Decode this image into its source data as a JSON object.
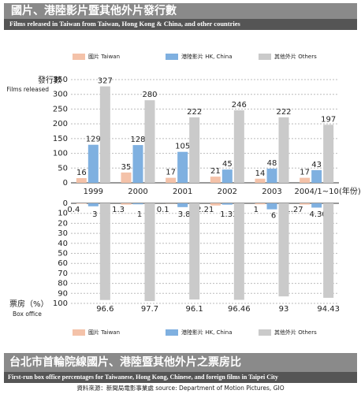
{
  "chart_data": [
    {
      "type": "bar",
      "title": "國片、港陸影片暨其他外片發行數",
      "subtitle": "Films released in Taiwan from Taiwan, Hong Kong & China, and other countries",
      "y_label": "發行數",
      "y_label_en": "Films released",
      "x_unit": "(年份)",
      "categories": [
        "1999",
        "2000",
        "2001",
        "2002",
        "2003",
        "2004/1~10"
      ],
      "series": [
        {
          "name": "國片 Taiwan",
          "color": "#f4c2a9",
          "values": [
            16,
            35,
            17,
            21,
            14,
            17
          ]
        },
        {
          "name": "港陸影片 HK, China",
          "color": "#7fb0e0",
          "values": [
            129,
            128,
            105,
            45,
            48,
            43
          ]
        },
        {
          "name": "其他外片 Others",
          "color": "#cacaca",
          "values": [
            327,
            280,
            222,
            246,
            222,
            197
          ]
        }
      ],
      "ylim": [
        0,
        350
      ],
      "yticks": [
        0,
        50,
        100,
        150,
        200,
        250,
        300,
        350
      ],
      "grid": true
    },
    {
      "type": "bar",
      "title": "台北市首輪院線國片、港陸暨其他外片之票房比",
      "subtitle": "First-run box office percentages for Taiwanese, Hong Kong, Chinese, and foreign films in Taipei City",
      "y_label": "票房（%）",
      "y_label_en": "Box office",
      "y_inverted": true,
      "series": [
        {
          "name": "國片 Taiwan",
          "color": "#f4c2a9",
          "values": [
            0.4,
            1.3,
            0.1,
            2.21,
            1,
            1.27
          ]
        },
        {
          "name": "港陸影片 HK, China",
          "color": "#7fb0e0",
          "values": [
            3,
            1,
            3.8,
            1.33,
            6,
            4.3
          ],
          "value_labels": [
            "3",
            "1",
            "3.8",
            "1.33",
            "6",
            "4.30"
          ]
        },
        {
          "name": "其他外片 Others",
          "color": "#cacaca",
          "values": [
            96.6,
            97.7,
            96.1,
            96.46,
            93,
            94.43
          ]
        }
      ],
      "ylim": [
        0,
        100
      ],
      "yticks": [
        0,
        10,
        20,
        30,
        40,
        50,
        60,
        70,
        80,
        90,
        100
      ],
      "grid": true
    }
  ],
  "source": "資料來源：新聞局電影事業處 source: Department of Motion Pictures, GIO"
}
